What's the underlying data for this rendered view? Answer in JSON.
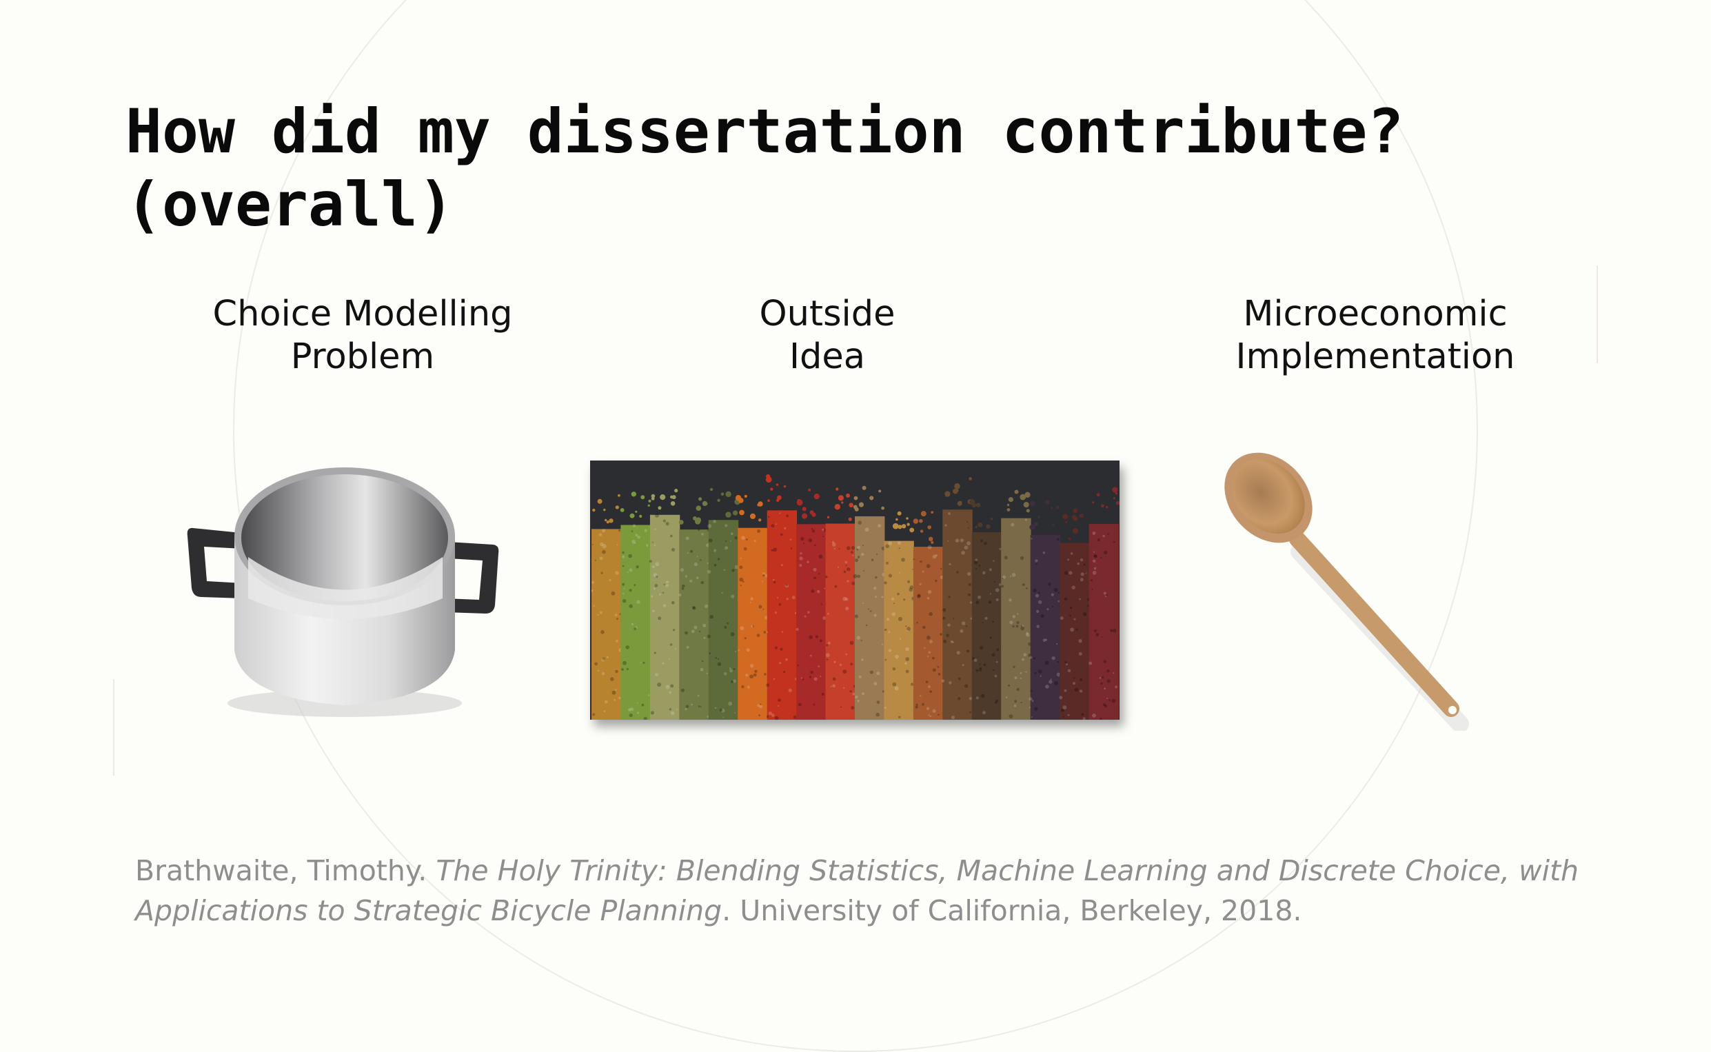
{
  "slide": {
    "title_line1": "How did my dissertation contribute?",
    "title_line2": "(overall)"
  },
  "columns": [
    {
      "label": "Choice Modelling\nProblem",
      "image": "cooking-pot-image"
    },
    {
      "label": "Outside\nIdea",
      "image": "spices-image"
    },
    {
      "label": "Microeconomic\nImplementation",
      "image": "wooden-spoon-image"
    }
  ],
  "citation": {
    "author": "Brathwaite, Timothy. ",
    "work_title": "The Holy Trinity: Blending Statistics, Machine Learning and Discrete Choice, with Applications to Strategic Bicycle Planning",
    "publisher": ". University of California, Berkeley, 2018."
  },
  "colors": {
    "background": "#fdfdf9",
    "citation_text": "#8e8e8e",
    "spices": [
      "#b8832e",
      "#7a9a3c",
      "#9a9c62",
      "#6f7a45",
      "#5d6b3a",
      "#d26a22",
      "#c2321f",
      "#a82a28",
      "#c53f2a",
      "#9a7a52",
      "#b98a44",
      "#a45a2e",
      "#6b4a30",
      "#4e3a2a",
      "#7a6a48",
      "#3e2e40",
      "#5a2a26",
      "#7a2a2e"
    ]
  }
}
